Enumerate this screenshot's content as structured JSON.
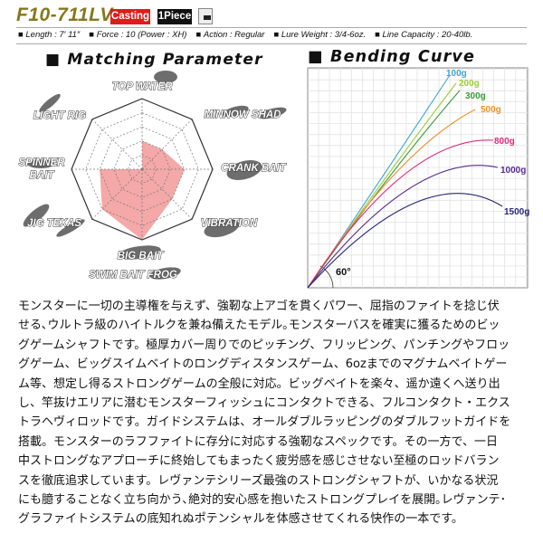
{
  "header": {
    "model": "F10-711LV",
    "badge_type": "Casting",
    "badge_pieces": "1Piece",
    "offset_icon": "offset-grip-icon",
    "badge_type_color": "#e01b1b"
  },
  "specs": [
    {
      "label": "Length : 7′ 11″"
    },
    {
      "label": "Force : 10 (Power : XH)"
    },
    {
      "label": "Action : Regular"
    },
    {
      "label": "Lure Weight : 3/4-6oz."
    },
    {
      "label": "Line Capacity : 20-40lb."
    }
  ],
  "matching": {
    "title": "Matching Parameter",
    "max": 5,
    "fill_color": "#f4a8a8",
    "axes": [
      {
        "label": "TOP WATER",
        "value": 2
      },
      {
        "label": "MINNOW SHAD",
        "value": 2
      },
      {
        "label": "CRANK BAIT",
        "value": 3
      },
      {
        "label": "VIBRATION",
        "value": 3
      },
      {
        "label": "BIG BAIT",
        "value": 5
      },
      {
        "label": "JIG TEXAS",
        "value": 4
      },
      {
        "label": "SPINNER BAIT",
        "value": 3
      },
      {
        "label": "LIGHT RIG",
        "value": 0
      }
    ],
    "extra_label": "SWIM BAIT FROG"
  },
  "bending": {
    "title": "Bending Curve",
    "angle_label": "60°",
    "series": [
      {
        "name": "100g",
        "color": "#3aa6d2"
      },
      {
        "name": "200g",
        "color": "#9dcc3a"
      },
      {
        "name": "300g",
        "color": "#3a9a3a"
      },
      {
        "name": "500g",
        "color": "#f0922c"
      },
      {
        "name": "800g",
        "color": "#e02a7c"
      },
      {
        "name": "1000g",
        "color": "#5a2a8c"
      },
      {
        "name": "1500g",
        "color": "#26267a"
      }
    ]
  },
  "description": [
    "モンスターに一切の主導権を与えず、強靭な上アゴを貫くパワー、屈指のファイトを捻じ伏",
    "せる､ウルトラ級のハイトルクを兼ね備えたモデル｡モンスターバスを確実に獲るためのビッ",
    "グゲームシャフトです。極厚カバー周りでのピッチング、フリッピング、パンチングやフロッ",
    "グゲーム、ビッグスイムベイトのロングディスタンスゲーム、6ozまでのマグナムベイトゲー",
    "ム等、想定し得るストロングゲームの全般に対応。ビッグベイトを楽々、遥か遠くへ送り出",
    "し、竿抜けエリアに潜むモンスターフィッシュにコンタクトできる、フルコンタクト・エクス",
    "トラヘヴィロッドです。ガイドシステムは、オールダブルラッピングのダブルフットガイドを",
    "搭載。モンスターのラフファイトに存分に対応する強靭なスペックです。その一方で、一日",
    "中ストロングなアプローチに終始してもまったく疲労感を感じさせない至極のロッドバラン",
    "スを徹底追求しています。レヴァンテシリーズ最強のストロングシャフトが、いかなる状況",
    "にも臆することなく立ち向かう､絶対的安心感を抱いたストロングプレイを展開｡レヴァンテ･",
    "グラファイトシステムの底知れぬポテンシャルを体感させてくれる快作の一本です。"
  ]
}
